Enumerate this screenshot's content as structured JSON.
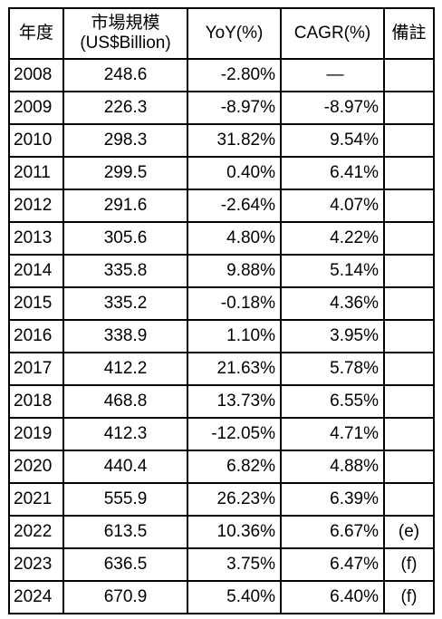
{
  "headers": {
    "year": "年度",
    "market_size_line1": "市場規模",
    "market_size_line2": "(US$Billion)",
    "yoy": "YoY(%)",
    "cagr": "CAGR(%)",
    "notes": "備註"
  },
  "rows": [
    {
      "year": "2008",
      "size": "248.6",
      "yoy": "-2.80%",
      "cagr": "—",
      "note": ""
    },
    {
      "year": "2009",
      "size": "226.3",
      "yoy": "-8.97%",
      "cagr": "-8.97%",
      "note": ""
    },
    {
      "year": "2010",
      "size": "298.3",
      "yoy": "31.82%",
      "cagr": "9.54%",
      "note": ""
    },
    {
      "year": "2011",
      "size": "299.5",
      "yoy": "0.40%",
      "cagr": "6.41%",
      "note": ""
    },
    {
      "year": "2012",
      "size": "291.6",
      "yoy": "-2.64%",
      "cagr": "4.07%",
      "note": ""
    },
    {
      "year": "2013",
      "size": "305.6",
      "yoy": "4.80%",
      "cagr": "4.22%",
      "note": ""
    },
    {
      "year": "2014",
      "size": "335.8",
      "yoy": "9.88%",
      "cagr": "5.14%",
      "note": ""
    },
    {
      "year": "2015",
      "size": "335.2",
      "yoy": "-0.18%",
      "cagr": "4.36%",
      "note": ""
    },
    {
      "year": "2016",
      "size": "338.9",
      "yoy": "1.10%",
      "cagr": "3.95%",
      "note": ""
    },
    {
      "year": "2017",
      "size": "412.2",
      "yoy": "21.63%",
      "cagr": "5.78%",
      "note": ""
    },
    {
      "year": "2018",
      "size": "468.8",
      "yoy": "13.73%",
      "cagr": "6.55%",
      "note": ""
    },
    {
      "year": "2019",
      "size": "412.3",
      "yoy": "-12.05%",
      "cagr": "4.71%",
      "note": ""
    },
    {
      "year": "2020",
      "size": "440.4",
      "yoy": "6.82%",
      "cagr": "4.88%",
      "note": ""
    },
    {
      "year": "2021",
      "size": "555.9",
      "yoy": "26.23%",
      "cagr": "6.39%",
      "note": ""
    },
    {
      "year": "2022",
      "size": "613.5",
      "yoy": "10.36%",
      "cagr": "6.67%",
      "note": "(e)"
    },
    {
      "year": "2023",
      "size": "636.5",
      "yoy": "3.75%",
      "cagr": "6.47%",
      "note": "(f)"
    },
    {
      "year": "2024",
      "size": "670.9",
      "yoy": "5.40%",
      "cagr": "6.40%",
      "note": "(f)"
    }
  ]
}
